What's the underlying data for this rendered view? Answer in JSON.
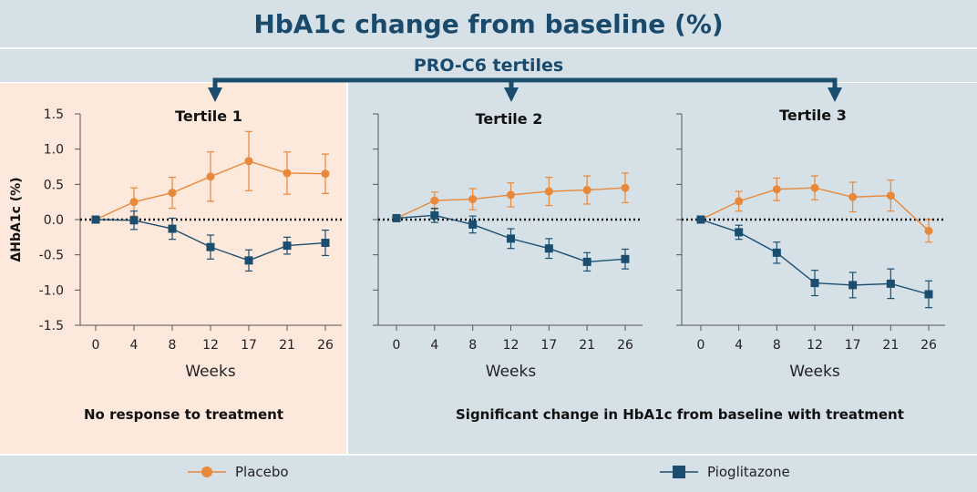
{
  "title": "HbA1c change from baseline (%)",
  "subtitle": "PRO-C6 tertiles",
  "notes": {
    "left": "No response to treatment",
    "right": "Significant change in HbA1c from baseline with treatment"
  },
  "legend": {
    "placebo": "Placebo",
    "pioglitazone": "Pioglitazone"
  },
  "colors": {
    "placebo": "#e8883a",
    "pioglitazone": "#1b4e6e",
    "banner": "#d6e1e7",
    "tertile1_bg": "#fde8dc",
    "title_text": "#1a4a6b"
  },
  "chart_data": [
    {
      "type": "line",
      "title": "Tertile 1",
      "xlabel": "Weeks",
      "ylabel": "ΔHbA1c (%)",
      "x": [
        0,
        4,
        8,
        12,
        17,
        21,
        26
      ],
      "ylim": [
        -1.5,
        1.5
      ],
      "yticks": [
        "1.5",
        "1.0",
        "0.5",
        "0.0",
        "-0.5",
        "-1.0",
        "-1.5"
      ],
      "reference_line": 0,
      "series": [
        {
          "name": "Placebo",
          "values": [
            0.0,
            0.25,
            0.38,
            0.61,
            0.83,
            0.66,
            0.65
          ],
          "errors": [
            0.0,
            0.2,
            0.22,
            0.35,
            0.42,
            0.3,
            0.28
          ]
        },
        {
          "name": "Pioglitazone",
          "values": [
            0.0,
            -0.01,
            -0.13,
            -0.39,
            -0.58,
            -0.37,
            -0.33
          ],
          "errors": [
            0.0,
            0.13,
            0.15,
            0.17,
            0.15,
            0.12,
            0.18
          ]
        }
      ]
    },
    {
      "type": "line",
      "title": "Tertile 2",
      "xlabel": "Weeks",
      "x": [
        0,
        4,
        8,
        12,
        17,
        21,
        26
      ],
      "ylim": [
        -1.5,
        1.5
      ],
      "reference_line": 0,
      "series": [
        {
          "name": "Placebo",
          "values": [
            0.02,
            0.27,
            0.29,
            0.35,
            0.4,
            0.42,
            0.45
          ],
          "errors": [
            0.0,
            0.12,
            0.15,
            0.17,
            0.2,
            0.2,
            0.21
          ]
        },
        {
          "name": "Pioglitazone",
          "values": [
            0.02,
            0.06,
            -0.07,
            -0.27,
            -0.41,
            -0.6,
            -0.56
          ],
          "errors": [
            0.0,
            0.1,
            0.12,
            0.14,
            0.14,
            0.13,
            0.14
          ]
        }
      ]
    },
    {
      "type": "line",
      "title": "Tertile 3",
      "xlabel": "Weeks",
      "x": [
        0,
        4,
        8,
        12,
        17,
        21,
        26
      ],
      "ylim": [
        -1.5,
        1.5
      ],
      "reference_line": 0,
      "series": [
        {
          "name": "Placebo",
          "values": [
            0.0,
            0.26,
            0.43,
            0.45,
            0.32,
            0.34,
            -0.16
          ],
          "errors": [
            0.0,
            0.14,
            0.16,
            0.17,
            0.21,
            0.22,
            0.16
          ]
        },
        {
          "name": "Pioglitazone",
          "values": [
            0.0,
            -0.18,
            -0.47,
            -0.9,
            -0.93,
            -0.91,
            -1.06
          ],
          "errors": [
            0.0,
            0.1,
            0.15,
            0.18,
            0.18,
            0.21,
            0.19
          ]
        }
      ]
    }
  ]
}
